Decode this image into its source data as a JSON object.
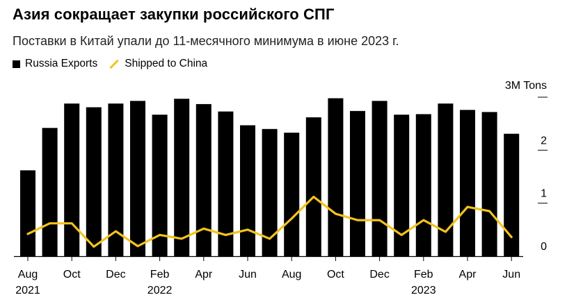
{
  "title": "Азия сокращает закупки российского СПГ",
  "subtitle": "Поставки в Китай упали до 11-месячного минимума в июне 2023 г.",
  "colors": {
    "bars": "#000000",
    "line": "#f2c31c",
    "axis": "#000000"
  },
  "chart_data": {
    "type": "bar",
    "categories": [
      "2021-08",
      "2021-09",
      "2021-10",
      "2021-11",
      "2021-12",
      "2022-01",
      "2022-02",
      "2022-03",
      "2022-04",
      "2022-05",
      "2022-06",
      "2022-07",
      "2022-08",
      "2022-09",
      "2022-10",
      "2022-11",
      "2022-12",
      "2023-01",
      "2023-02",
      "2023-03",
      "2023-04",
      "2023-05",
      "2023-06"
    ],
    "series": [
      {
        "name": "Russia Exports",
        "type": "bar",
        "values": [
          1.62,
          2.42,
          2.88,
          2.81,
          2.88,
          2.93,
          2.67,
          2.97,
          2.87,
          2.73,
          2.47,
          2.4,
          2.33,
          2.62,
          2.98,
          2.74,
          2.93,
          2.67,
          2.68,
          2.88,
          2.76,
          2.72,
          2.31
        ]
      },
      {
        "name": "Shipped to China",
        "type": "line",
        "values": [
          0.42,
          0.62,
          0.62,
          0.18,
          0.47,
          0.19,
          0.4,
          0.33,
          0.52,
          0.4,
          0.5,
          0.33,
          0.71,
          1.12,
          0.8,
          0.68,
          0.68,
          0.4,
          0.68,
          0.46,
          0.93,
          0.85,
          0.36
        ]
      }
    ],
    "xticks": [
      {
        "month": "2021-08",
        "label": "Aug",
        "year": "2021"
      },
      {
        "month": "2021-10",
        "label": "Oct",
        "year": ""
      },
      {
        "month": "2021-12",
        "label": "Dec",
        "year": ""
      },
      {
        "month": "2022-02",
        "label": "Feb",
        "year": "2022"
      },
      {
        "month": "2022-04",
        "label": "Apr",
        "year": ""
      },
      {
        "month": "2022-06",
        "label": "Jun",
        "year": ""
      },
      {
        "month": "2022-08",
        "label": "Aug",
        "year": ""
      },
      {
        "month": "2022-10",
        "label": "Oct",
        "year": ""
      },
      {
        "month": "2022-12",
        "label": "Dec",
        "year": ""
      },
      {
        "month": "2023-02",
        "label": "Feb",
        "year": "2023"
      },
      {
        "month": "2023-04",
        "label": "Apr",
        "year": ""
      },
      {
        "month": "2023-06",
        "label": "Jun",
        "year": ""
      }
    ],
    "yticks": [
      {
        "value": 0,
        "label": "0"
      },
      {
        "value": 1,
        "label": "1"
      },
      {
        "value": 2,
        "label": "2"
      },
      {
        "value": 3,
        "label": "3M Tons"
      }
    ],
    "ylim": [
      0,
      3
    ],
    "legend_position": "top-left",
    "grid": false
  }
}
